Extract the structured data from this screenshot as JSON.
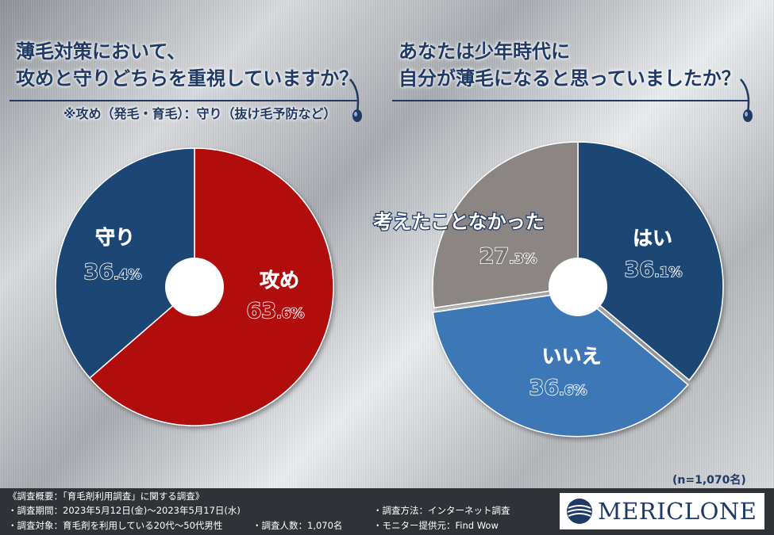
{
  "titles": {
    "left_line1": "薄毛対策において、",
    "left_line2": "攻めと守りどちらを重視していますか？",
    "left_note": "※攻め（発毛・育毛）：守り（抜け毛予防など）",
    "right_line1": "あなたは少年時代に",
    "right_line2": "自分が薄毛になると思っていましたか？"
  },
  "sample": "(n=1,070名)",
  "footer": {
    "line1": "《調査概要：「育毛剤利用調査」に関する調査》",
    "line2": "・調査期間：2023年5月12日(金)〜2023年5月17日(水)",
    "line3": "・調査対象：育毛剤を利用している20代〜50代男性",
    "line3b": "・調査人数：1,070名",
    "line4": "・調査方法：インターネット調査",
    "line5": "・モニター提供元：Find Wow",
    "logo": "MERICLONE"
  },
  "colors": {
    "red": "#b10c0c",
    "navy": "#1e4775",
    "blue": "#3c77b6",
    "gray": "#8b8684",
    "title": "#1f3a64"
  },
  "chart_data": [
    {
      "type": "pie",
      "title": "薄毛対策において、攻めと守りどちらを重視していますか？",
      "slices": [
        {
          "label": "攻め",
          "value": 63.6,
          "num": "63",
          "dec": ".6%"
        },
        {
          "label": "守り",
          "value": 36.4,
          "num": "36",
          "dec": ".4%"
        }
      ]
    },
    {
      "type": "pie",
      "title": "あなたは少年時代に自分が薄毛になると思っていましたか？",
      "slices": [
        {
          "label": "はい",
          "value": 36.1,
          "num": "36",
          "dec": ".1%"
        },
        {
          "label": "いいえ",
          "value": 36.6,
          "num": "36",
          "dec": ".6%"
        },
        {
          "label": "考えたことなかった",
          "value": 27.3,
          "num": "27",
          "dec": ".3%"
        }
      ]
    }
  ]
}
